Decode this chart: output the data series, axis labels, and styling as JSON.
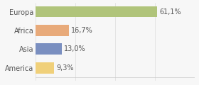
{
  "categories": [
    "Europa",
    "Africa",
    "Asia",
    "America"
  ],
  "values": [
    61.1,
    16.7,
    13.0,
    9.3
  ],
  "labels": [
    "61,1%",
    "16,7%",
    "13,0%",
    "9,3%"
  ],
  "bar_colors": [
    "#b0c47a",
    "#e8aa7a",
    "#7a8fc0",
    "#f0d07a"
  ],
  "xlim": [
    0,
    80
  ],
  "background_color": "#f7f7f7",
  "figsize": [
    2.8,
    1.2
  ],
  "dpi": 100,
  "bar_height": 0.6,
  "label_fontsize": 7.0,
  "ytick_fontsize": 7.0
}
